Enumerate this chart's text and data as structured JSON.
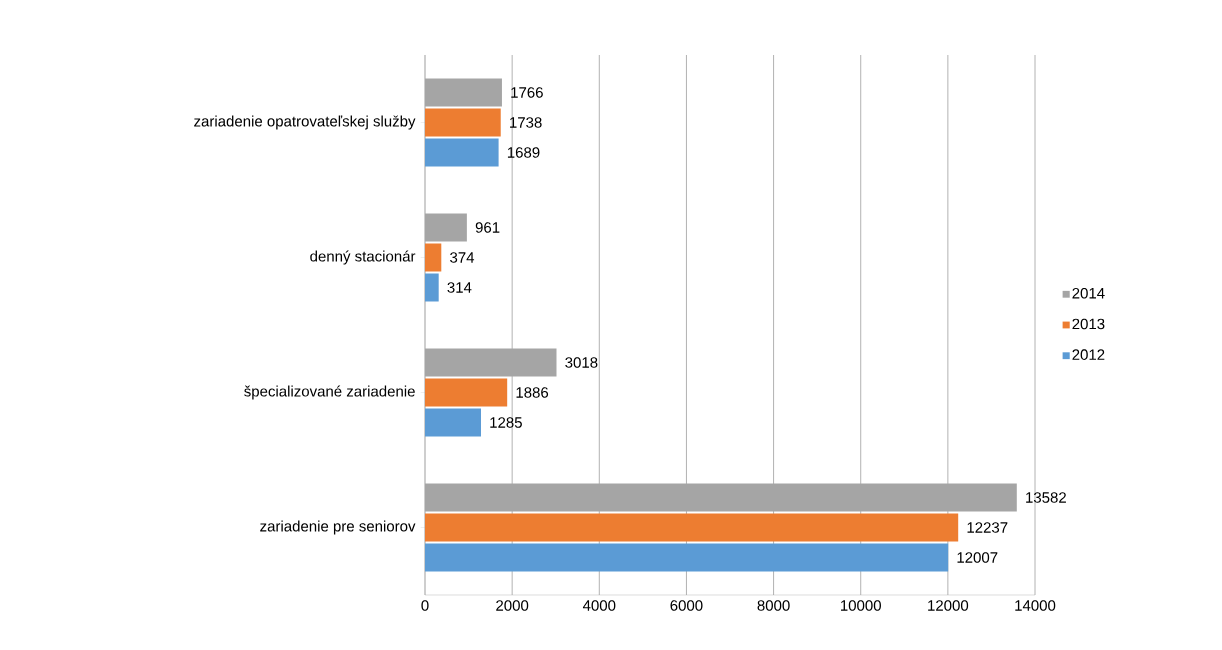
{
  "chart_data": {
    "type": "bar",
    "orientation": "horizontal",
    "categories": [
      "zariadenie opatrovateľskej služby",
      "denný stacionár",
      "špecializované zariadenie",
      "zariadenie pre seniorov"
    ],
    "series": [
      {
        "name": "2012",
        "color": "#5b9bd5",
        "values": [
          1689,
          314,
          1285,
          12007
        ]
      },
      {
        "name": "2013",
        "color": "#ed7d31",
        "values": [
          1738,
          374,
          1886,
          12237
        ]
      },
      {
        "name": "2014",
        "color": "#a5a5a5",
        "values": [
          1766,
          961,
          3018,
          13582
        ]
      }
    ],
    "xlim": [
      0,
      14000
    ],
    "xticks": [
      0,
      2000,
      4000,
      6000,
      8000,
      10000,
      12000,
      14000
    ],
    "grid": "x",
    "data_labels": true,
    "legend": "right"
  }
}
